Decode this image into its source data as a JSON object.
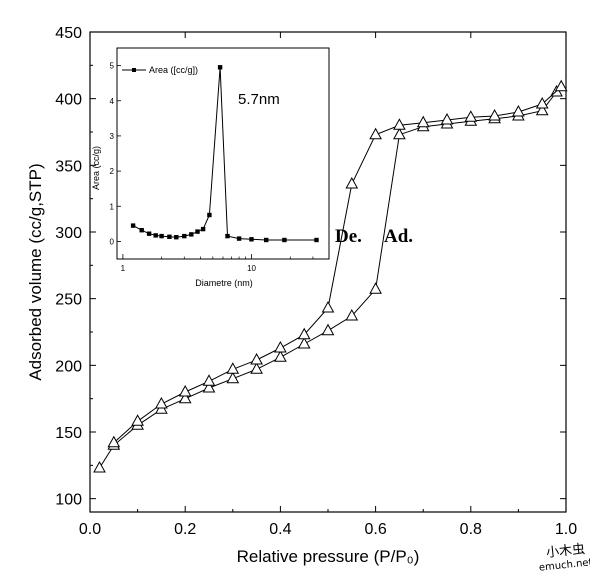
{
  "chart_data": [
    {
      "type": "line",
      "xlabel": "Relative pressure (P/P₀)",
      "ylabel": "Adsorbed volume (cc/g,STP)",
      "xlim": [
        0.0,
        1.0
      ],
      "ylim": [
        90,
        450
      ],
      "xticks": [
        "0.0",
        "0.2",
        "0.4",
        "0.6",
        "0.8",
        "1.0"
      ],
      "yticks": [
        "100",
        "150",
        "200",
        "250",
        "300",
        "350",
        "400",
        "450"
      ],
      "marker": "open-triangle",
      "annotations": [
        "De.",
        "Ad."
      ],
      "series": [
        {
          "x": [
            0.02,
            0.05,
            0.1,
            0.15,
            0.2,
            0.25,
            0.3,
            0.35,
            0.4,
            0.45,
            0.5,
            0.55,
            0.6,
            0.65,
            0.7,
            0.75,
            0.8,
            0.85,
            0.9,
            0.95,
            0.98
          ],
          "y": [
            123,
            140,
            155,
            167,
            175,
            183,
            190,
            197,
            206,
            216,
            226,
            237,
            257,
            373,
            379,
            381,
            383,
            385,
            387,
            391,
            405
          ]
        },
        {
          "x": [
            0.99,
            0.95,
            0.9,
            0.85,
            0.8,
            0.75,
            0.7,
            0.65,
            0.6,
            0.55,
            0.5,
            0.45,
            0.4,
            0.35,
            0.3,
            0.25,
            0.2,
            0.15,
            0.1,
            0.05
          ],
          "y": [
            409,
            396,
            390,
            387,
            386,
            384,
            382,
            380,
            373,
            336,
            243,
            223,
            213,
            204,
            197,
            188,
            180,
            171,
            158,
            142
          ]
        }
      ]
    },
    {
      "type": "line",
      "xlabel": "Diametre (nm)",
      "ylabel": "Area (cc/g)",
      "xscale": "log",
      "xlim": [
        0.9,
        40
      ],
      "ylim": [
        -0.5,
        5.5
      ],
      "xticks": [
        "1",
        "10"
      ],
      "yticks": [
        "0",
        "1",
        "2",
        "3",
        "4",
        "5"
      ],
      "legend": "Area ([cc/g])",
      "annotations": [
        "5.7nm"
      ],
      "marker": "filled-square",
      "series": [
        {
          "name": "Area ([cc/g])",
          "x": [
            1.2,
            1.4,
            1.6,
            1.8,
            2.0,
            2.3,
            2.6,
            3.0,
            3.4,
            3.8,
            4.2,
            4.7,
            5.7,
            6.5,
            8.0,
            10.0,
            13.0,
            18.0,
            32.0
          ],
          "y": [
            0.45,
            0.32,
            0.22,
            0.17,
            0.15,
            0.13,
            0.12,
            0.15,
            0.2,
            0.28,
            0.35,
            0.75,
            4.95,
            0.15,
            0.08,
            0.06,
            0.04,
            0.04,
            0.04
          ]
        }
      ]
    }
  ],
  "watermark": {
    "line1": "小木虫",
    "line2": "emuch.net"
  }
}
